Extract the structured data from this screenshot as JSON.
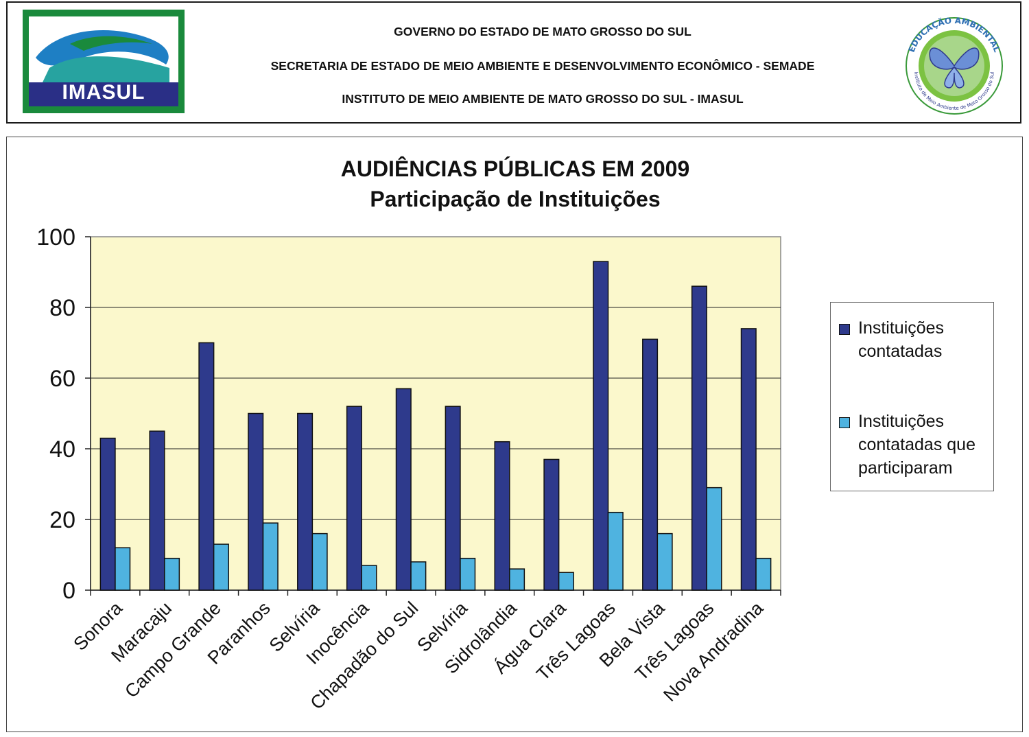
{
  "header": {
    "line1": "GOVERNO DO ESTADO DE MATO GROSSO DO SUL",
    "line2": "SECRETARIA DE ESTADO DE MEIO AMBIENTE E DESENVOLVIMENTO ECONÔMICO - SEMADE",
    "line3": "INSTITUTO DE MEIO AMBIENTE DE MATO GROSSO DO SUL - IMASUL",
    "logo_left_text": "IMASUL",
    "logo_right_text_top": "EDUCAÇÃO AMBIENTAL",
    "logo_right_text_bottom": "Instituto de Meio Ambiente de Mato Grosso do Sul"
  },
  "chart_data": {
    "type": "bar",
    "title": "AUDIÊNCIAS PÚBLICAS EM 2009",
    "subtitle": "Participação de Instituições",
    "categories": [
      "Sonora",
      "Maracaju",
      "Campo Grande",
      "Paranhos",
      "Selvíria",
      "Inocência",
      "Chapadão do Sul",
      "Selvíria",
      "Sidrolândia",
      "Água Clara",
      "Três Lagoas",
      "Bela Vista",
      "Três Lagoas",
      "Nova Andradina"
    ],
    "series": [
      {
        "name": "Instituições contatadas",
        "color": "#2e3a8c",
        "values": [
          43,
          45,
          70,
          50,
          50,
          52,
          57,
          52,
          42,
          37,
          93,
          71,
          86,
          74
        ]
      },
      {
        "name": "Instituições contatadas que participaram",
        "color": "#4fb3e0",
        "values": [
          12,
          9,
          13,
          19,
          16,
          7,
          8,
          9,
          6,
          5,
          22,
          16,
          29,
          9
        ]
      }
    ],
    "ylim": [
      0,
      100
    ],
    "yticks": [
      0,
      20,
      40,
      60,
      80,
      100
    ],
    "grid": true,
    "plot_background": "#fbf8cc",
    "legend_position": "right"
  }
}
